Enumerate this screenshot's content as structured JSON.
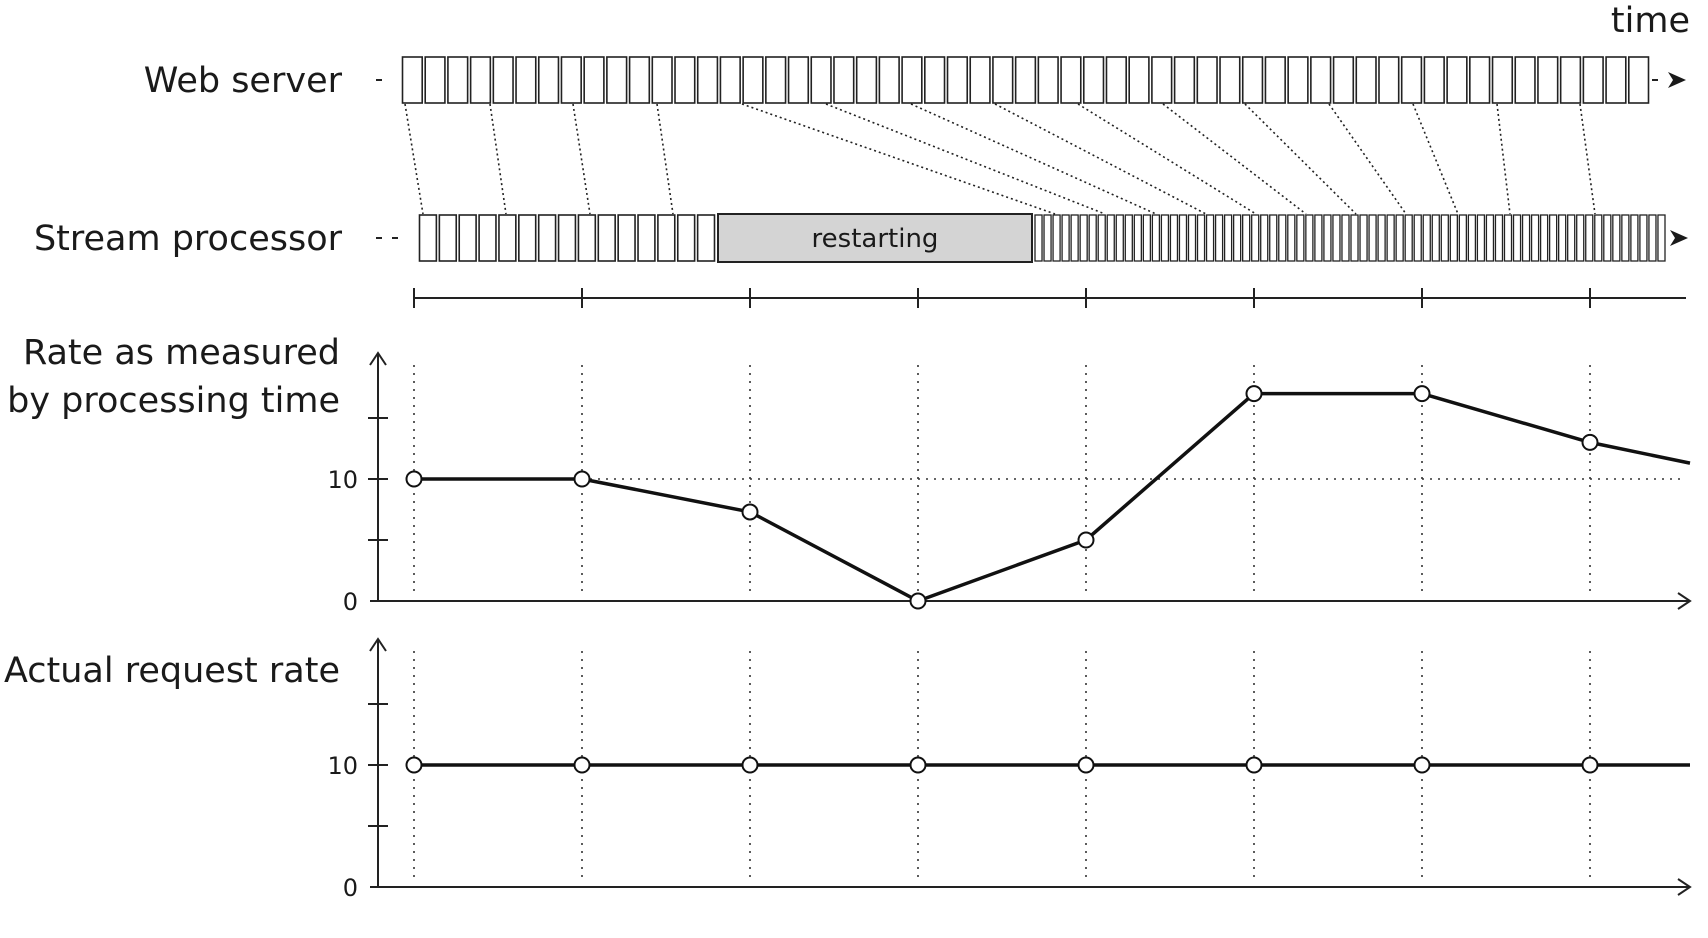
{
  "header": {
    "time_label": "time"
  },
  "timeline": {
    "web_server_label": "Web server",
    "stream_processor_label": "Stream processor",
    "restart_label": "restarting",
    "web_server_events": 55,
    "sp_events_before": 15,
    "sp_events_after": 70
  },
  "chart_data": [
    {
      "type": "line",
      "title": "Rate as measured by processing time",
      "title_lines": [
        "Rate as measured",
        "by processing time"
      ],
      "x": [
        0,
        1,
        2,
        3,
        4,
        5,
        6,
        7
      ],
      "values": [
        10,
        10,
        7.3,
        0,
        5,
        17,
        17,
        13
      ],
      "tail_value": 11.3,
      "ylim": [
        0,
        20
      ],
      "yticks": [
        0,
        5,
        10,
        15
      ],
      "ytick_labels": [
        "0",
        "10"
      ],
      "reference_line": 10,
      "grid": "vertical-dotted"
    },
    {
      "type": "line",
      "title": "Actual request rate",
      "title_lines": [
        "Actual request rate"
      ],
      "x": [
        0,
        1,
        2,
        3,
        4,
        5,
        6,
        7
      ],
      "values": [
        10,
        10,
        10,
        10,
        10,
        10,
        10,
        10
      ],
      "tail_value": 10,
      "ylim": [
        0,
        20
      ],
      "yticks": [
        0,
        5,
        10,
        15
      ],
      "ytick_labels": [
        "0",
        "10"
      ],
      "grid": "vertical-dotted"
    }
  ]
}
